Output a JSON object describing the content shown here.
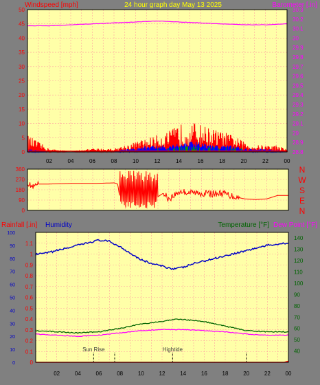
{
  "colors": {
    "background": "#808080",
    "plot_bg": "#ffffa8",
    "grid": "#ff9f9f",
    "wind": "#ff0000",
    "gust": "#ff0000",
    "wind_blue": "#0000ff",
    "wind_green": "#00a000",
    "barometer": "#ff00ff",
    "humidity": "#0000c8",
    "temperature": "#006400",
    "dewpoint": "#ff00ff",
    "rainfall": "#ff0000",
    "direction": "#ff0000",
    "title": "#ffff00",
    "annotation": "#404040"
  },
  "header": {
    "title": "24 hour graph day   May 13 2025"
  },
  "chart_data": [
    {
      "type": "line",
      "id": "wind-barometer",
      "title": "24 hour graph day   May 13 2025",
      "ylabel_left": "Windspeed [mph]",
      "ylabel_right": "Barometer [.in]",
      "ylim_left": [
        0,
        50
      ],
      "yticks_left": [
        "0",
        "5",
        "10",
        "15",
        "20",
        "25",
        "30",
        "35",
        "40",
        "45",
        "50"
      ],
      "ylim_right": [
        28.8,
        30.3
      ],
      "yticks_right": [
        "28.8",
        "28.9",
        "29",
        "29.1",
        "29.2",
        "29.3",
        "29.4",
        "29.5",
        "29.6",
        "29.7",
        "29.8",
        "29.9",
        "30",
        "30.1",
        "30.2",
        "30.3"
      ],
      "x_hours": [
        0,
        24
      ],
      "series": [
        {
          "name": "Barometer",
          "axis": "right",
          "x": [
            0,
            2,
            4,
            6,
            8,
            10,
            12,
            14,
            16,
            18,
            20,
            22,
            24
          ],
          "values": [
            30.13,
            30.13,
            30.14,
            30.15,
            30.16,
            30.17,
            30.18,
            30.17,
            30.16,
            30.15,
            30.14,
            30.14,
            30.15
          ]
        },
        {
          "name": "Gust",
          "axis": "left",
          "x": [
            0,
            1,
            2,
            4,
            6,
            8,
            9,
            10,
            11,
            12,
            13,
            14,
            15,
            16,
            17,
            18,
            19,
            20,
            21,
            22,
            23,
            24
          ],
          "values": [
            5,
            3,
            1,
            0,
            1,
            1,
            2,
            3,
            4,
            5,
            6,
            8,
            9,
            8,
            7,
            6,
            5,
            3,
            2,
            2,
            2,
            1
          ]
        },
        {
          "name": "Wind",
          "axis": "left",
          "x": [
            0,
            2,
            4,
            6,
            8,
            9,
            10,
            11,
            12,
            13,
            14,
            15,
            16,
            17,
            18,
            19,
            20,
            21,
            22,
            24
          ],
          "values": [
            1,
            0,
            0,
            0,
            0,
            1,
            1,
            2,
            2,
            2,
            3,
            3,
            3,
            2,
            2,
            2,
            1,
            1,
            1,
            0
          ]
        }
      ]
    },
    {
      "type": "line",
      "id": "wind-direction",
      "ylim": [
        0,
        360
      ],
      "yticks": [
        "0",
        "90",
        "180",
        "270",
        "360"
      ],
      "compass": [
        "N",
        "W",
        "S",
        "E",
        "N"
      ],
      "x_hours": [
        0,
        24
      ],
      "series": [
        {
          "name": "Direction",
          "x": [
            0,
            0.5,
            1,
            2,
            4,
            6,
            8,
            8.3,
            8.6,
            9,
            9.5,
            10,
            10.5,
            11,
            11.5,
            12,
            12.5,
            13,
            14,
            15,
            16,
            17,
            18,
            19,
            20,
            21,
            22,
            23,
            24
          ],
          "values": [
            240,
            200,
            230,
            230,
            235,
            235,
            240,
            230,
            40,
            320,
            30,
            300,
            20,
            280,
            40,
            120,
            150,
            100,
            165,
            155,
            150,
            145,
            150,
            120,
            100,
            95,
            100,
            130,
            130
          ]
        }
      ]
    },
    {
      "type": "line",
      "id": "rain-humidity-temperature",
      "ylabel_left": "Rainfall [.in]",
      "ylabel_left2": "Humidity",
      "ylabel_right": "Temperature [°F]",
      "ylabel_right2": "Dew Point [°F]",
      "ylim_left": [
        0,
        1.2
      ],
      "yticks_left": [
        "0",
        "0.1",
        "0.2",
        "0.3",
        "0.4",
        "0.5",
        "0.6",
        "0.7",
        "0.8",
        "0.9",
        "1",
        "1.1"
      ],
      "ylim_humidity": [
        0,
        100
      ],
      "yticks_humidity": [
        "0",
        "10",
        "20",
        "30",
        "40",
        "50",
        "60",
        "70",
        "80",
        "90",
        "100"
      ],
      "ylim_right": [
        30,
        145
      ],
      "yticks_right": [
        "40",
        "50",
        "60",
        "70",
        "80",
        "90",
        "100",
        "110",
        "120",
        "130",
        "140"
      ],
      "x_hours": [
        0,
        24
      ],
      "xticks": [
        "02",
        "04",
        "06",
        "08",
        "10",
        "12",
        "14",
        "16",
        "18",
        "20",
        "22",
        "00"
      ],
      "annotations": [
        {
          "label": "Sun Rise",
          "x": 5.5
        },
        {
          "label": "Hightide",
          "x": 13.0
        },
        {
          "label": "",
          "x": 7.5
        },
        {
          "label": "",
          "x": 20.0
        }
      ],
      "series": [
        {
          "name": "Humidity",
          "axis": "humidity",
          "x": [
            0,
            1,
            2,
            3,
            4,
            5,
            6,
            7,
            8,
            9,
            10,
            11,
            12,
            13,
            14,
            15,
            16,
            17,
            18,
            19,
            20,
            21,
            22,
            23,
            24
          ],
          "values": [
            83,
            84,
            86,
            88,
            90,
            92,
            94,
            93,
            89,
            84,
            79,
            76,
            74,
            72,
            73,
            76,
            78,
            80,
            82,
            84,
            86,
            88,
            90,
            91,
            92
          ]
        },
        {
          "name": "Temperature",
          "axis": "right",
          "x": [
            0,
            2,
            4,
            6,
            8,
            10,
            12,
            13,
            14,
            16,
            18,
            20,
            22,
            24
          ],
          "values": [
            58,
            57,
            56,
            57,
            60,
            64,
            66,
            68,
            68,
            66,
            62,
            58,
            57,
            57
          ]
        },
        {
          "name": "Dew Point",
          "axis": "right",
          "x": [
            0,
            2,
            4,
            6,
            8,
            10,
            12,
            14,
            16,
            18,
            20,
            22,
            24
          ],
          "values": [
            55,
            54,
            53,
            54,
            56,
            58,
            59,
            59,
            58,
            57,
            55,
            54,
            54
          ]
        },
        {
          "name": "Rainfall",
          "axis": "left",
          "x": [
            0,
            23.8,
            24
          ],
          "values": [
            0,
            0,
            0.01
          ]
        }
      ]
    }
  ]
}
